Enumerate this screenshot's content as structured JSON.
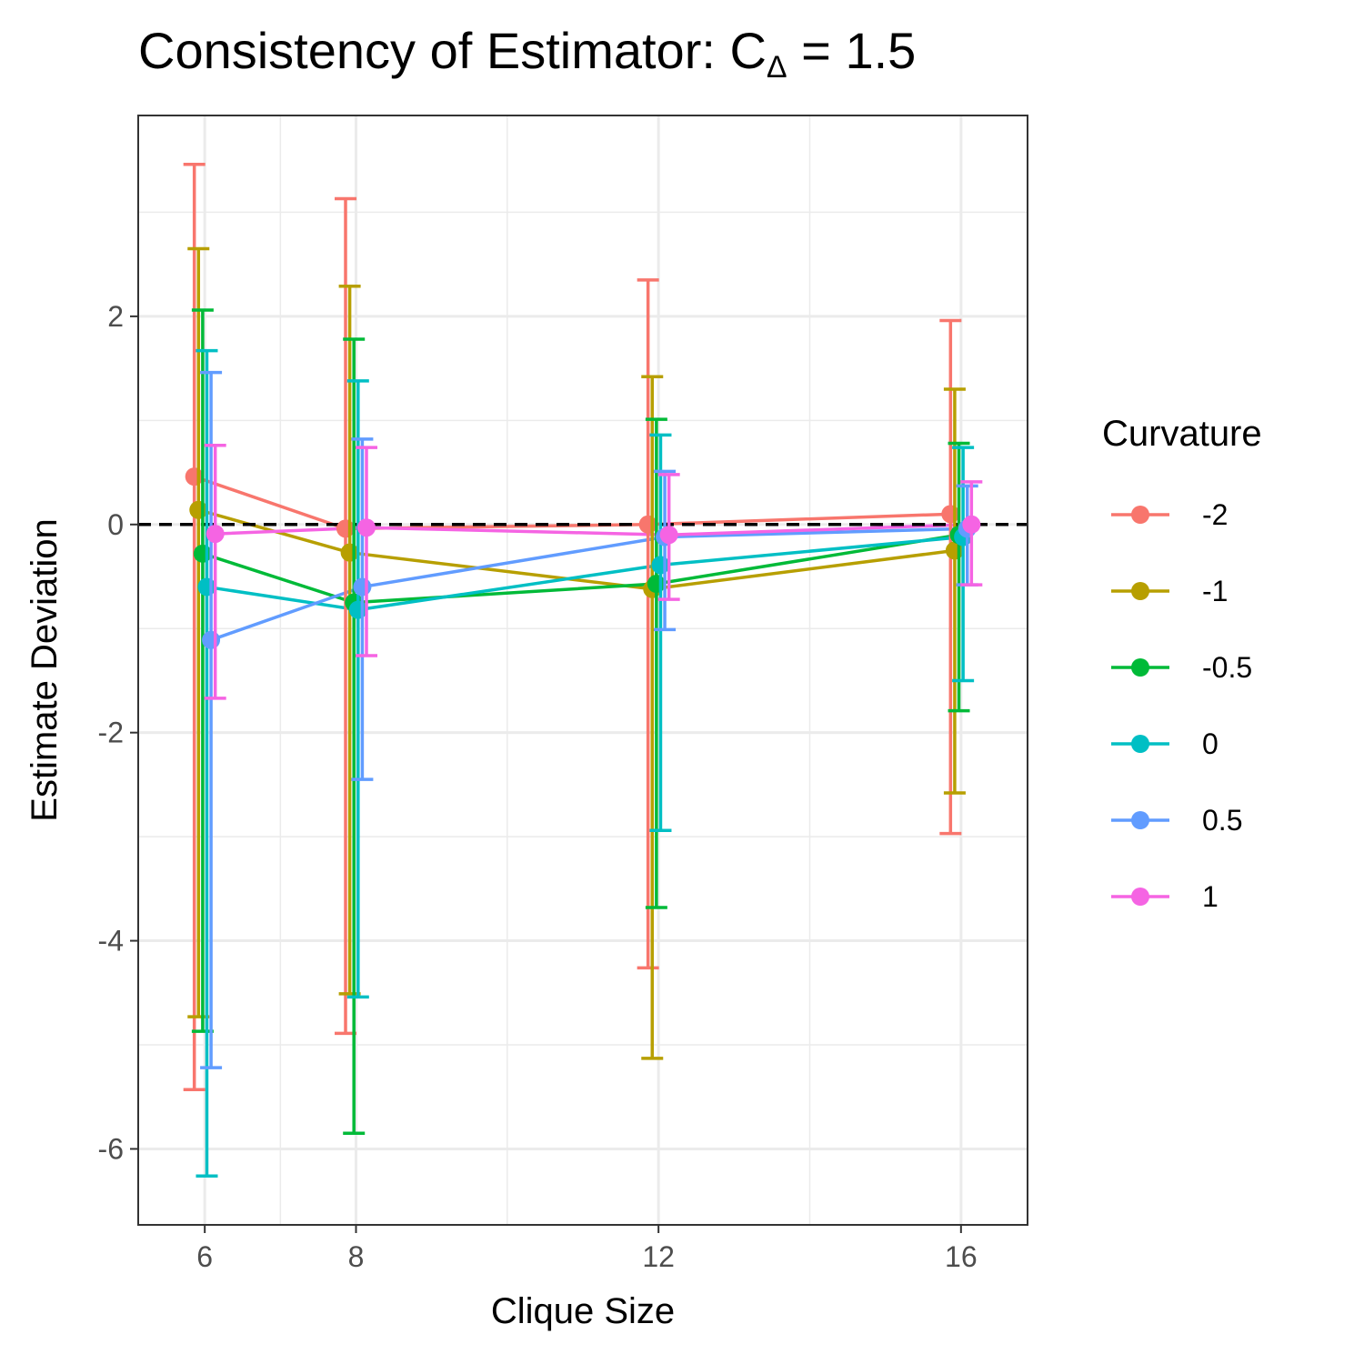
{
  "chart_data": {
    "type": "line",
    "title_main": "Consistency of Estimator: C",
    "title_subscript": "Δ",
    "title_suffix": " = 1.5",
    "xlabel": "Clique Size",
    "ylabel": "Estimate Deviation",
    "x": [
      6,
      8,
      12,
      16
    ],
    "x_tick_labels": [
      "6",
      "8",
      "12",
      "16"
    ],
    "y_tick_values": [
      -6,
      -4,
      -2,
      0,
      2
    ],
    "y_tick_labels": [
      "-6",
      "-4",
      "-2",
      "0",
      "2"
    ],
    "xlim": [
      5.12,
      16.88
    ],
    "ylim": [
      -6.73,
      3.93
    ],
    "x_minor_gridlines": [
      7,
      10,
      14
    ],
    "y_minor_gridlines": [
      -5,
      -3,
      -1,
      1,
      3
    ],
    "reference_line": 0,
    "dodge_width": 0.2,
    "grid": true,
    "legend_title": "Curvature",
    "legend_position": "right",
    "series": [
      {
        "name": "-2",
        "color": "#F8766D",
        "values": [
          0.46,
          -0.04,
          0.0,
          0.1
        ],
        "lower": [
          -5.43,
          -4.89,
          -4.26,
          -2.97
        ],
        "upper": [
          3.46,
          3.13,
          2.35,
          1.96
        ]
      },
      {
        "name": "-1",
        "color": "#B79F00",
        "values": [
          0.14,
          -0.27,
          -0.62,
          -0.25
        ],
        "lower": [
          -4.73,
          -4.51,
          -5.13,
          -2.58
        ],
        "upper": [
          2.65,
          2.29,
          1.42,
          1.3
        ]
      },
      {
        "name": "-0.5",
        "color": "#00BA38",
        "values": [
          -0.28,
          -0.75,
          -0.57,
          -0.1
        ],
        "lower": [
          -4.87,
          -5.85,
          -3.68,
          -1.79
        ],
        "upper": [
          2.06,
          1.78,
          1.01,
          0.78
        ]
      },
      {
        "name": "0",
        "color": "#00BFC4",
        "values": [
          -0.6,
          -0.82,
          -0.39,
          -0.12
        ],
        "lower": [
          -6.26,
          -4.54,
          -2.94,
          -1.5
        ],
        "upper": [
          1.67,
          1.38,
          0.86,
          0.74
        ]
      },
      {
        "name": "0.5",
        "color": "#619CFF",
        "values": [
          -1.11,
          -0.6,
          -0.12,
          -0.04
        ],
        "lower": [
          -5.22,
          -2.45,
          -1.01,
          -0.58
        ],
        "upper": [
          1.46,
          0.82,
          0.51,
          0.37
        ]
      },
      {
        "name": "1",
        "color": "#F564E3",
        "values": [
          -0.09,
          -0.03,
          -0.1,
          0.0
        ],
        "lower": [
          -1.67,
          -1.26,
          -0.72,
          -0.58
        ],
        "upper": [
          0.76,
          0.74,
          0.48,
          0.41
        ]
      }
    ]
  }
}
